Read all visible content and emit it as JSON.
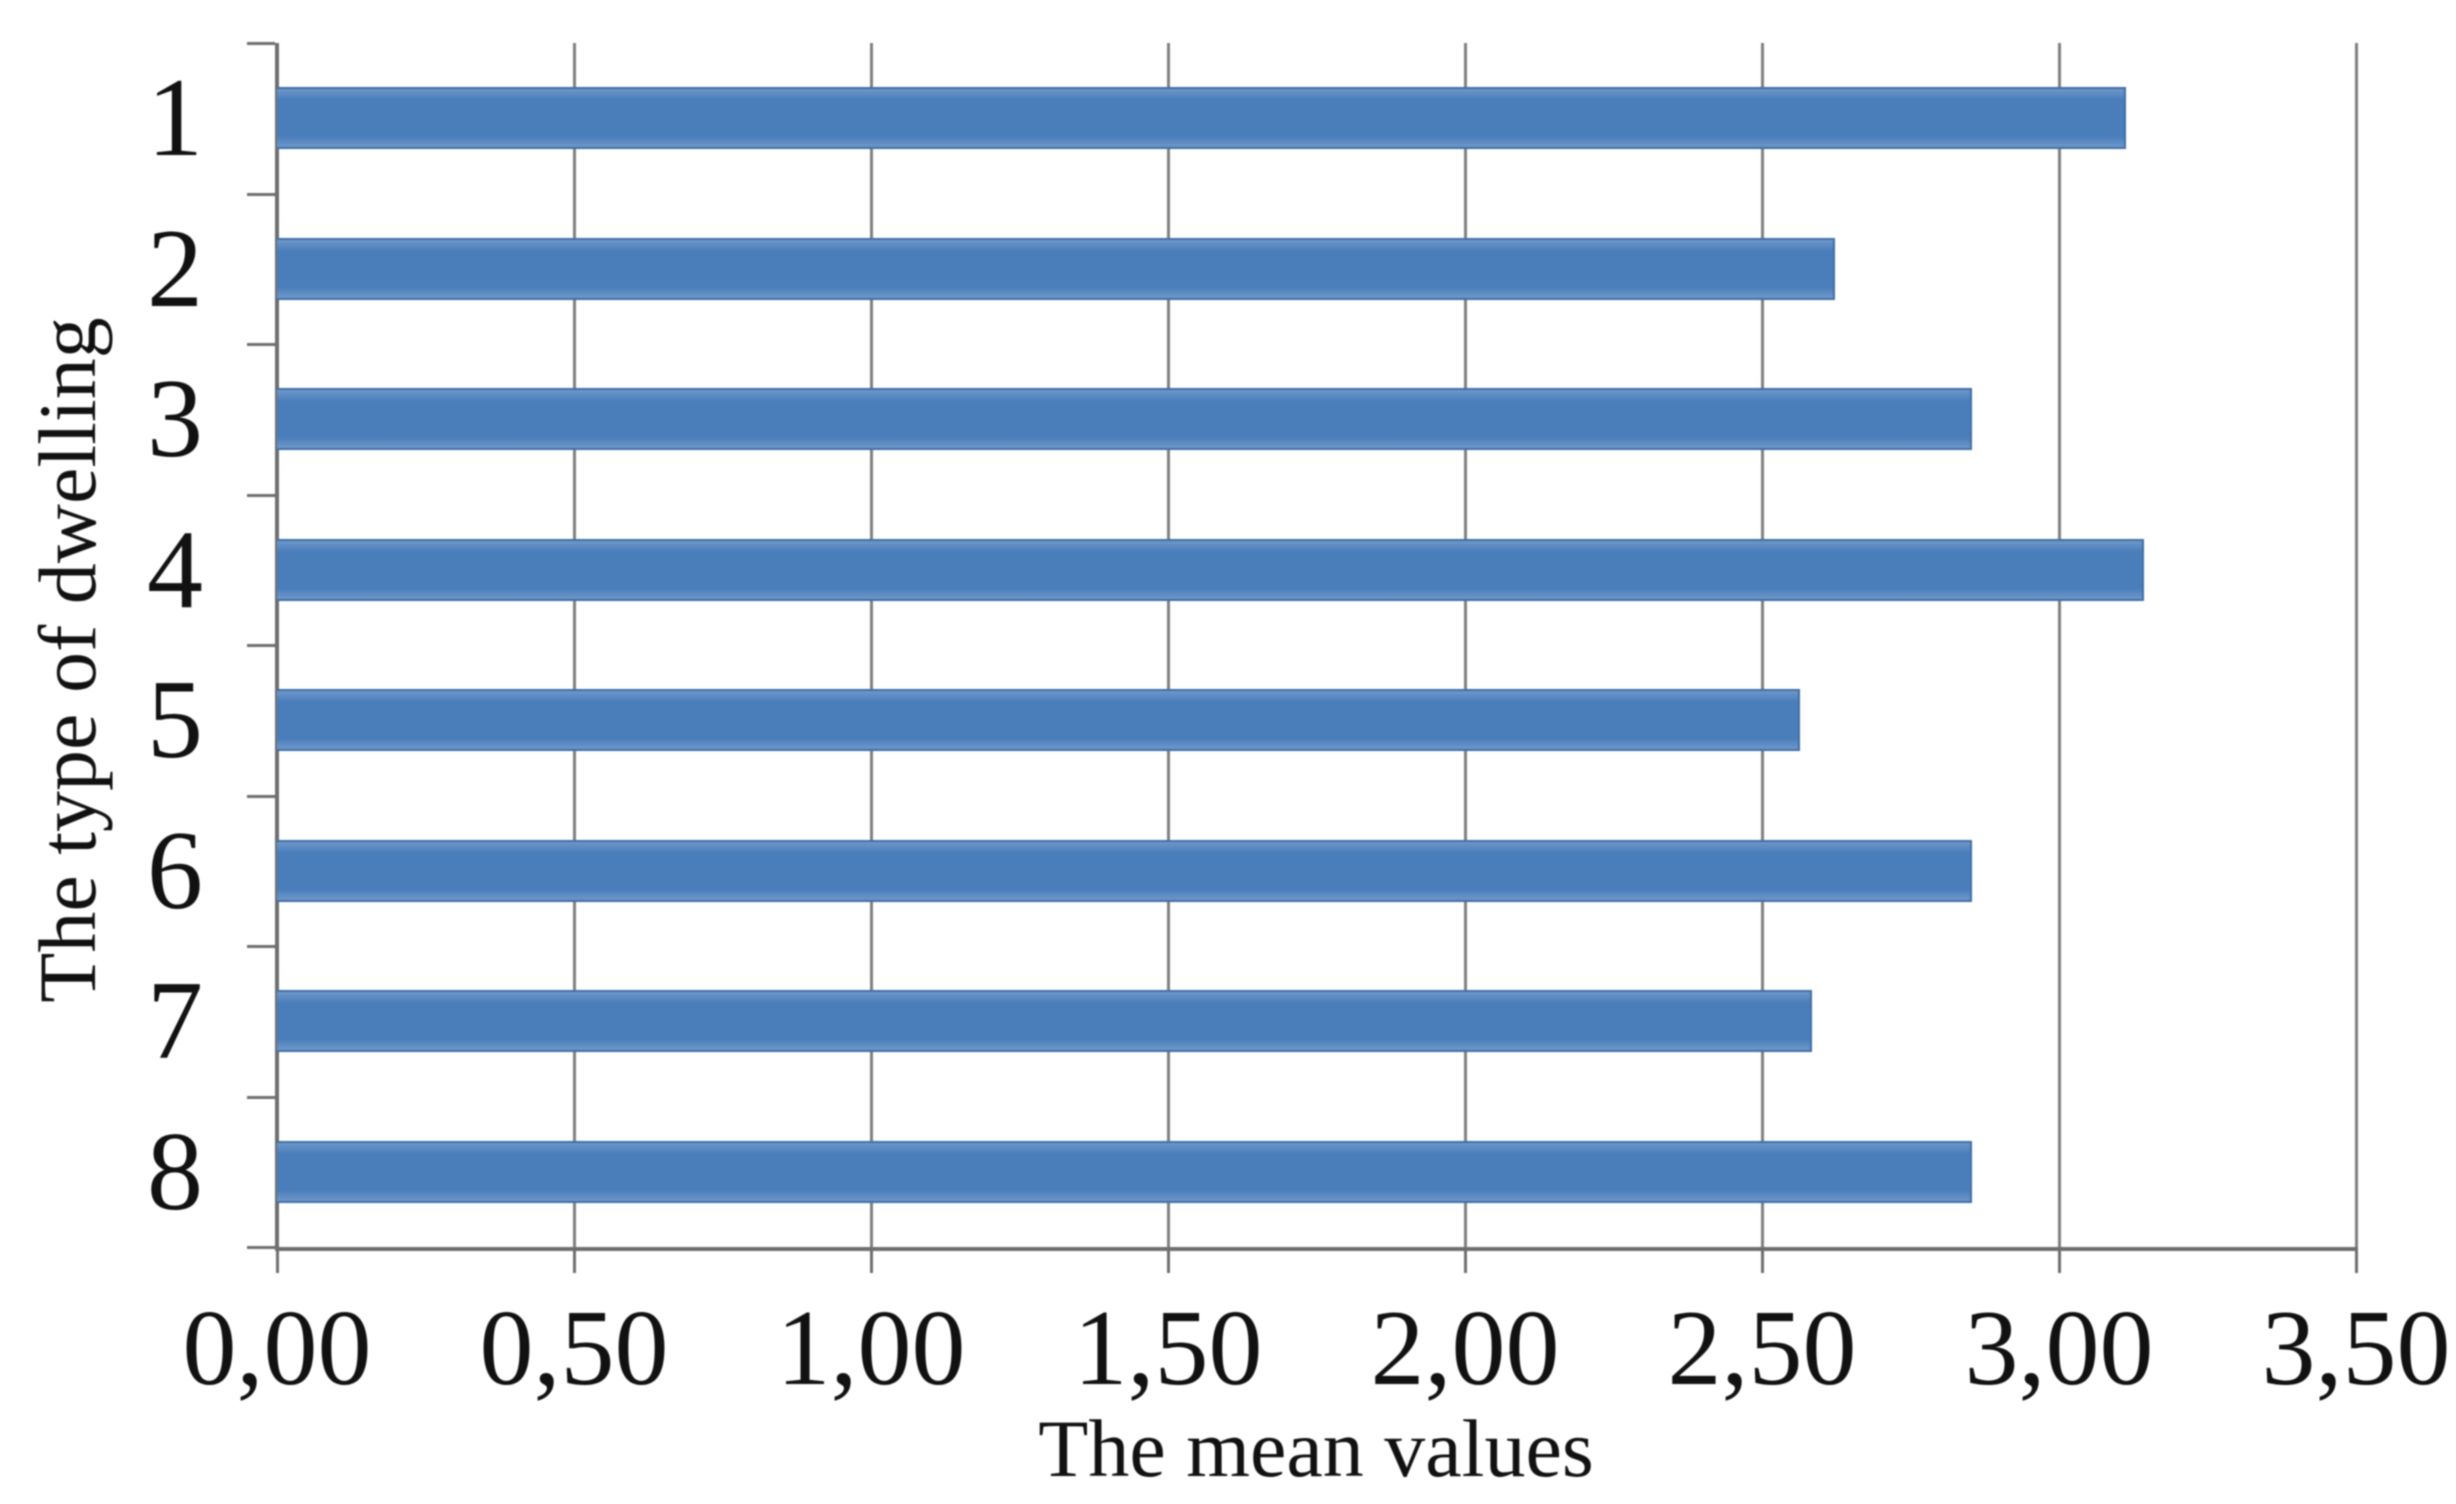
{
  "chart_data": {
    "type": "bar",
    "orientation": "horizontal",
    "title": "",
    "xlabel": "The mean values",
    "ylabel": "The type of dwelling",
    "categories": [
      "1",
      "2",
      "3",
      "4",
      "5",
      "6",
      "7",
      "8"
    ],
    "values": [
      3.11,
      2.62,
      2.85,
      3.14,
      2.56,
      2.85,
      2.58,
      2.85
    ],
    "xlim": [
      0,
      3.5
    ],
    "xtick_step": 0.5,
    "xtick_labels": [
      "0,00",
      "0,50",
      "1,00",
      "1,50",
      "2,00",
      "2,50",
      "3,00",
      "3,50"
    ],
    "decimal_separator": ",",
    "grid": true,
    "legend": "none",
    "colors": {
      "bar_fill": "#4a7ebb",
      "bar_fill_light": "#6f97c9",
      "bar_border": "#3e6fa8",
      "gridline": "#7f7f7f",
      "axis_line": "#6e6e6e",
      "text": "#111111",
      "background": "#ffffff"
    }
  }
}
